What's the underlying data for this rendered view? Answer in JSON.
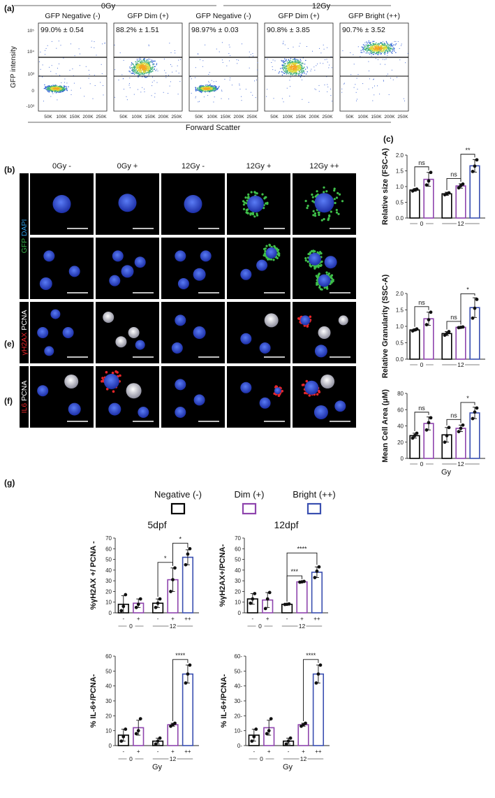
{
  "panel_labels": [
    "(a)",
    "(b)",
    "(c)",
    "(e)",
    "(f)",
    "(g)"
  ],
  "flow": {
    "group_labels": [
      "0Gy",
      "12Gy"
    ],
    "gates": [
      {
        "name": "GFP Negative (-)",
        "stat": "99.0% ± 0.54",
        "pattern": "neg"
      },
      {
        "name": "GFP Dim (+)",
        "stat": "88.2% ± 1.51",
        "pattern": "dim"
      },
      {
        "name": "GFP Negative (-)",
        "stat": "98.97% ± 0.03",
        "pattern": "neg"
      },
      {
        "name": "GFP Dim (+)",
        "stat": "90.8% ± 3.85",
        "pattern": "dim"
      },
      {
        "name": "GFP Bright (++)",
        "stat": "90.7% ± 3.52",
        "pattern": "bright"
      }
    ],
    "ylabel": "GFP intensity",
    "xlabel": "Forward Scatter",
    "yticks": [
      "10⁵",
      "10⁴",
      "10³",
      "0",
      "-10³"
    ],
    "xticks": [
      "50K",
      "100K",
      "150K",
      "200K",
      "250K"
    ]
  },
  "microscopy": {
    "columns": [
      "0Gy -",
      "0Gy +",
      "12Gy -",
      "12Gy +",
      "12Gy ++"
    ],
    "rows": [
      {
        "label_parts": [
          {
            "t": "GFP",
            "c": "#39b54a"
          },
          {
            "t": " DAPI",
            "c": "#2e9be0"
          }
        ]
      },
      {
        "label_parts": []
      },
      {
        "label_parts": [
          {
            "t": "γH2AX",
            "c": "#e8262a"
          },
          {
            "t": " PCNA",
            "c": "#ffffff"
          }
        ]
      },
      {
        "label_parts": [
          {
            "t": "IL6",
            "c": "#e8262a"
          },
          {
            "t": " PCNA",
            "c": "#ffffff"
          }
        ]
      }
    ]
  },
  "legend": {
    "items": [
      {
        "label": "Negative (-)",
        "color": "#000000"
      },
      {
        "label": "Dim (+)",
        "color": "#8e44ad"
      },
      {
        "label": "Bright (++)",
        "color": "#3a4fb0"
      }
    ]
  },
  "colors": {
    "negative": "#000000",
    "dim": "#8e44ad",
    "bright": "#3a4fb0",
    "fluor_green": "#39b54a",
    "fluor_blue": "#2e9be0",
    "fluor_red": "#e8262a"
  },
  "chart_data": [
    {
      "id": "c1",
      "type": "bar",
      "panel": "(c)",
      "ylabel": "Relative size (FSC-A)",
      "ylim": [
        0,
        2.0
      ],
      "yticks": [
        0,
        0.5,
        1.0,
        1.5,
        2.0
      ],
      "ytick_labels": [
        "0.0",
        "0.5",
        "1.0",
        "1.5",
        "2.0"
      ],
      "categories": [
        "0 -",
        "0 +",
        "12 -",
        "12 +",
        "12 ++"
      ],
      "bar_colors": [
        "#000000",
        "#8e44ad",
        "#000000",
        "#8e44ad",
        "#3a4fb0"
      ],
      "values": [
        0.89,
        1.23,
        0.77,
        1.02,
        1.66
      ],
      "errors": [
        0.04,
        0.22,
        0.05,
        0.07,
        0.2
      ],
      "points": [
        [
          0.86,
          0.9,
          0.92
        ],
        [
          1.05,
          1.18,
          1.45
        ],
        [
          0.74,
          0.77,
          0.8
        ],
        [
          0.96,
          1.03,
          1.08
        ],
        [
          1.48,
          1.65,
          1.85
        ]
      ],
      "sig": [
        {
          "from": 0,
          "to": 1,
          "label": "ns",
          "level": 0
        },
        {
          "from": 2,
          "to": 3,
          "label": "ns",
          "level": 0
        },
        {
          "from": 3,
          "to": 4,
          "label": "**",
          "level": 0
        }
      ],
      "groups": [
        {
          "label": "0",
          "from": 0,
          "to": 1
        },
        {
          "label": "12",
          "from": 2,
          "to": 4
        }
      ],
      "xlabel": "",
      "xticks": []
    },
    {
      "id": "c2",
      "type": "bar",
      "panel": "(c)",
      "ylabel": "Relative Granularity (SSC-A)",
      "ylim": [
        0,
        2.0
      ],
      "yticks": [
        0,
        0.5,
        1.0,
        1.5,
        2.0
      ],
      "ytick_labels": [
        "0.0",
        "0.5",
        "1.0",
        "1.5",
        "2.0"
      ],
      "categories": [
        "0 -",
        "0 +",
        "12 -",
        "12 +",
        "12 ++"
      ],
      "bar_colors": [
        "#000000",
        "#8e44ad",
        "#000000",
        "#8e44ad",
        "#3a4fb0"
      ],
      "values": [
        0.89,
        1.23,
        0.78,
        0.97,
        1.57
      ],
      "errors": [
        0.03,
        0.2,
        0.06,
        0.02,
        0.3
      ],
      "points": [
        [
          0.86,
          0.89,
          0.92
        ],
        [
          1.05,
          1.2,
          1.43
        ],
        [
          0.73,
          0.78,
          0.84
        ],
        [
          0.96,
          0.97,
          0.98
        ],
        [
          1.25,
          1.55,
          1.82
        ]
      ],
      "sig": [
        {
          "from": 0,
          "to": 1,
          "label": "ns",
          "level": 0
        },
        {
          "from": 2,
          "to": 3,
          "label": "ns",
          "level": 0
        },
        {
          "from": 3,
          "to": 4,
          "label": "*",
          "level": 0
        }
      ],
      "groups": [
        {
          "label": "0",
          "from": 0,
          "to": 1
        },
        {
          "label": "12",
          "from": 2,
          "to": 4
        }
      ],
      "xlabel": "",
      "xticks": []
    },
    {
      "id": "c3",
      "type": "bar",
      "panel": "(c)",
      "ylabel": "Mean Cell Area (μM)",
      "ylim": [
        0,
        80
      ],
      "yticks": [
        0,
        20,
        40,
        60,
        80
      ],
      "ytick_labels": [
        "0",
        "20",
        "40",
        "60",
        "80"
      ],
      "categories": [
        "0 -",
        "0 +",
        "12 -",
        "12 +",
        "12 ++"
      ],
      "bar_colors": [
        "#000000",
        "#8e44ad",
        "#000000",
        "#8e44ad",
        "#3a4fb0"
      ],
      "values": [
        28,
        43,
        29,
        37,
        56
      ],
      "errors": [
        3,
        8,
        9,
        4,
        7
      ],
      "points": [
        [
          25,
          28,
          31
        ],
        [
          35,
          44,
          50
        ],
        [
          20,
          28,
          38
        ],
        [
          33,
          37,
          41
        ],
        [
          49,
          57,
          62
        ]
      ],
      "sig": [
        {
          "from": 0,
          "to": 1,
          "label": "ns",
          "level": 0
        },
        {
          "from": 2,
          "to": 3,
          "label": "ns",
          "level": 0
        },
        {
          "from": 3,
          "to": 4,
          "label": "*",
          "level": 0
        }
      ],
      "groups": [
        {
          "label": "0",
          "from": 0,
          "to": 1
        },
        {
          "label": "12",
          "from": 2,
          "to": 4
        }
      ],
      "xlabel": "Gy",
      "xticks": []
    },
    {
      "id": "g1",
      "type": "bar",
      "panel": "(g)",
      "title": "5dpf",
      "ylabel": "%γH2AX +/ PCNA -",
      "ylim": [
        0,
        70
      ],
      "yticks": [
        0,
        10,
        20,
        30,
        40,
        50,
        60,
        70
      ],
      "ytick_labels": [
        "0",
        "10",
        "20",
        "30",
        "40",
        "50",
        "60",
        "70"
      ],
      "categories": [
        "0 -",
        "0 +",
        "12 -",
        "12 +",
        "12 ++"
      ],
      "bar_colors": [
        "#000000",
        "#8e44ad",
        "#000000",
        "#8e44ad",
        "#3a4fb0"
      ],
      "values": [
        8,
        9,
        9,
        31,
        52
      ],
      "errors": [
        8,
        4,
        4,
        11,
        7
      ],
      "points": [
        [
          2,
          6,
          17
        ],
        [
          5,
          8,
          13
        ],
        [
          5,
          9,
          13
        ],
        [
          20,
          31,
          42
        ],
        [
          45,
          55,
          60
        ]
      ],
      "sig": [
        {
          "from": 2,
          "to": 3,
          "label": "*",
          "level": 0
        },
        {
          "from": 3,
          "to": 4,
          "label": "*",
          "level": 0
        }
      ],
      "groups": [
        {
          "label": "0",
          "from": 0,
          "to": 1
        },
        {
          "label": "12",
          "from": 2,
          "to": 4
        }
      ],
      "xlabel": "",
      "xticks": [
        "-",
        "+",
        "-",
        "+",
        "++"
      ]
    },
    {
      "id": "g2",
      "type": "bar",
      "panel": "(g)",
      "title": "12dpf",
      "ylabel": "%γH2AX+/PCNA-",
      "ylim": [
        0,
        70
      ],
      "yticks": [
        0,
        10,
        20,
        30,
        40,
        50,
        60,
        70
      ],
      "ytick_labels": [
        "0",
        "10",
        "20",
        "30",
        "40",
        "50",
        "60",
        "70"
      ],
      "categories": [
        "0 -",
        "0 +",
        "12 -",
        "12 +",
        "12 ++"
      ],
      "bar_colors": [
        "#000000",
        "#8e44ad",
        "#000000",
        "#8e44ad",
        "#3a4fb0"
      ],
      "values": [
        13,
        12,
        8,
        29,
        38
      ],
      "errors": [
        5,
        7,
        0.5,
        0.5,
        5
      ],
      "points": [
        [
          9,
          13,
          18
        ],
        [
          4,
          13,
          19
        ],
        [
          7.8,
          8,
          8.3
        ],
        [
          28.7,
          29,
          29.4
        ],
        [
          33,
          39,
          43
        ]
      ],
      "sig": [
        {
          "from": 2,
          "to": 3,
          "label": "***",
          "level": 0
        },
        {
          "from": 2,
          "to": 4,
          "label": "****",
          "level": 1
        }
      ],
      "groups": [
        {
          "label": "0",
          "from": 0,
          "to": 1
        },
        {
          "label": "12",
          "from": 2,
          "to": 4
        }
      ],
      "xlabel": "",
      "xticks": [
        "-",
        "+",
        "-",
        "+",
        "++"
      ]
    },
    {
      "id": "g3",
      "type": "bar",
      "panel": "(g)",
      "ylabel": "% IL-6+/PCNA-",
      "ylim": [
        0,
        60
      ],
      "yticks": [
        0,
        10,
        20,
        30,
        40,
        50,
        60
      ],
      "ytick_labels": [
        "0",
        "10",
        "20",
        "30",
        "40",
        "50",
        "60"
      ],
      "categories": [
        "0 -",
        "0 +",
        "12 -",
        "12 +",
        "12 ++"
      ],
      "bar_colors": [
        "#000000",
        "#8e44ad",
        "#000000",
        "#8e44ad",
        "#3a4fb0"
      ],
      "values": [
        7,
        12,
        3,
        14,
        48
      ],
      "errors": [
        4,
        5,
        2,
        1,
        6
      ],
      "points": [
        [
          3,
          6,
          11
        ],
        [
          8,
          10,
          18
        ],
        [
          1,
          3,
          5
        ],
        [
          13,
          14,
          15
        ],
        [
          42,
          48,
          54
        ]
      ],
      "sig": [
        {
          "from": 3,
          "to": 4,
          "label": "****",
          "level": 0
        }
      ],
      "groups": [
        {
          "label": "0",
          "from": 0,
          "to": 1
        },
        {
          "label": "12",
          "from": 2,
          "to": 4
        }
      ],
      "xlabel": "Gy",
      "xticks": [
        "-",
        "+",
        "-",
        "+",
        "++"
      ]
    },
    {
      "id": "g4",
      "type": "bar",
      "panel": "(g)",
      "ylabel": "% IL-6+/PCNA-",
      "ylim": [
        0,
        60
      ],
      "yticks": [
        0,
        10,
        20,
        30,
        40,
        50,
        60
      ],
      "ytick_labels": [
        "0-",
        "10-",
        "20-",
        "30-",
        "40-",
        "50-",
        "60-"
      ],
      "categories": [
        "0 -",
        "0 +",
        "12 -",
        "12 +",
        "12 ++"
      ],
      "bar_colors": [
        "#000000",
        "#8e44ad",
        "#000000",
        "#8e44ad",
        "#3a4fb0"
      ],
      "values": [
        7,
        12,
        3,
        14,
        48
      ],
      "errors": [
        4,
        5,
        2,
        1,
        6
      ],
      "points": [
        [
          3,
          6,
          11
        ],
        [
          8,
          10,
          18
        ],
        [
          1,
          3,
          5
        ],
        [
          13,
          14,
          15
        ],
        [
          42,
          48,
          54
        ]
      ],
      "sig": [
        {
          "from": 3,
          "to": 4,
          "label": "****",
          "level": 0
        }
      ],
      "groups": [
        {
          "label": "0",
          "from": 0,
          "to": 1
        },
        {
          "label": "12",
          "from": 2,
          "to": 4
        }
      ],
      "xlabel": "Gy",
      "xticks": [
        "-",
        "+",
        "-",
        "+",
        "++"
      ]
    }
  ]
}
